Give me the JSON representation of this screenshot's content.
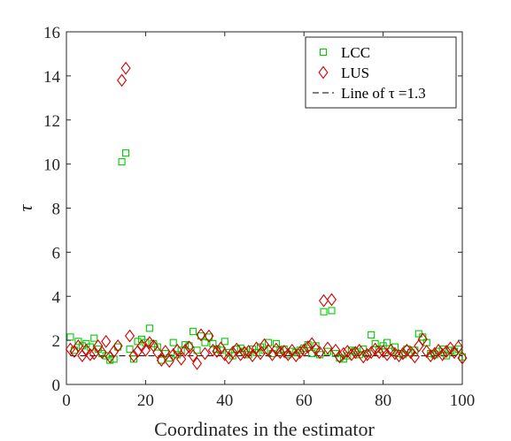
{
  "chart_data": {
    "type": "scatter",
    "title": "",
    "xlabel": "Coordinates in the estimator",
    "ylabel": "τ",
    "xlim": [
      0,
      100
    ],
    "ylim": [
      0,
      16
    ],
    "xticks": [
      0,
      20,
      40,
      60,
      80,
      100
    ],
    "yticks": [
      0,
      2,
      4,
      6,
      8,
      10,
      12,
      14,
      16
    ],
    "grid": false,
    "legend_position": "top-right",
    "series": [
      {
        "name": "LCC",
        "marker": "square",
        "color": "#00cc00",
        "x": [
          1,
          2,
          3,
          4,
          5,
          6,
          7,
          8,
          9,
          10,
          11,
          12,
          13,
          14,
          15,
          16,
          17,
          18,
          19,
          20,
          21,
          22,
          23,
          24,
          25,
          26,
          27,
          28,
          29,
          30,
          31,
          32,
          33,
          34,
          35,
          36,
          37,
          38,
          39,
          40,
          41,
          42,
          43,
          44,
          45,
          46,
          47,
          48,
          49,
          50,
          51,
          52,
          53,
          54,
          55,
          56,
          57,
          58,
          59,
          60,
          61,
          62,
          63,
          64,
          65,
          66,
          67,
          68,
          69,
          70,
          71,
          72,
          73,
          74,
          75,
          76,
          77,
          78,
          79,
          80,
          81,
          82,
          83,
          84,
          85,
          86,
          87,
          88,
          89,
          90,
          91,
          92,
          93,
          94,
          95,
          96,
          97,
          98,
          99,
          100
        ],
        "values": [
          2.15,
          1.55,
          1.95,
          1.75,
          1.85,
          1.7,
          2.1,
          1.6,
          1.4,
          1.3,
          1.1,
          1.15,
          1.7,
          10.1,
          10.5,
          1.6,
          1.15,
          1.95,
          2.05,
          1.9,
          2.55,
          1.85,
          1.7,
          1.1,
          1.4,
          1.2,
          1.9,
          1.35,
          1.55,
          1.8,
          1.75,
          2.4,
          1.55,
          2.2,
          1.9,
          2.15,
          1.85,
          1.6,
          1.55,
          1.95,
          1.45,
          1.3,
          1.6,
          1.65,
          1.5,
          1.35,
          1.6,
          1.45,
          1.7,
          1.55,
          1.9,
          1.4,
          1.85,
          1.55,
          1.6,
          1.35,
          1.5,
          1.45,
          1.55,
          1.65,
          1.8,
          1.4,
          1.75,
          1.35,
          3.3,
          1.5,
          3.35,
          1.4,
          1.2,
          1.15,
          1.3,
          1.55,
          1.5,
          1.35,
          1.6,
          1.4,
          2.25,
          1.85,
          1.6,
          1.75,
          1.9,
          1.5,
          1.7,
          1.4,
          1.35,
          1.6,
          1.45,
          1.55,
          2.3,
          2.15,
          1.9,
          1.4,
          1.35,
          1.5,
          1.6,
          1.3,
          1.55,
          1.5,
          1.6,
          1.25
        ]
      },
      {
        "name": "LUS",
        "marker": "diamond",
        "color": "#d40000",
        "x": [
          1,
          2,
          3,
          4,
          5,
          6,
          7,
          8,
          9,
          10,
          11,
          12,
          13,
          14,
          15,
          16,
          17,
          18,
          19,
          20,
          21,
          22,
          23,
          24,
          25,
          26,
          27,
          28,
          29,
          30,
          31,
          32,
          33,
          34,
          35,
          36,
          37,
          38,
          39,
          40,
          41,
          42,
          43,
          44,
          45,
          46,
          47,
          48,
          49,
          50,
          51,
          52,
          53,
          54,
          55,
          56,
          57,
          58,
          59,
          60,
          61,
          62,
          63,
          64,
          65,
          66,
          67,
          68,
          69,
          70,
          71,
          72,
          73,
          74,
          75,
          76,
          77,
          78,
          79,
          80,
          81,
          82,
          83,
          84,
          85,
          86,
          87,
          88,
          89,
          90,
          91,
          92,
          93,
          94,
          95,
          96,
          97,
          98,
          99,
          100
        ],
        "values": [
          1.6,
          1.5,
          1.75,
          1.3,
          1.55,
          1.35,
          1.4,
          1.75,
          1.45,
          1.95,
          1.25,
          1.5,
          1.75,
          13.8,
          14.35,
          2.2,
          1.3,
          1.5,
          1.75,
          1.55,
          1.9,
          1.75,
          1.45,
          1.1,
          1.5,
          1.05,
          1.35,
          1.55,
          1.15,
          1.55,
          1.7,
          1.3,
          0.95,
          2.25,
          1.4,
          2.2,
          1.55,
          1.5,
          1.65,
          1.35,
          1.2,
          1.45,
          1.6,
          1.35,
          1.45,
          1.5,
          1.3,
          1.65,
          1.4,
          1.8,
          1.55,
          1.35,
          1.6,
          1.45,
          1.5,
          1.35,
          1.55,
          1.3,
          1.45,
          1.55,
          1.7,
          1.85,
          1.6,
          1.45,
          3.8,
          1.65,
          3.85,
          1.55,
          1.25,
          1.4,
          1.5,
          1.35,
          1.45,
          1.55,
          1.25,
          1.35,
          1.45,
          1.6,
          1.45,
          1.5,
          1.35,
          1.55,
          1.4,
          1.3,
          1.4,
          1.55,
          1.45,
          1.25,
          1.75,
          2.05,
          1.5,
          1.3,
          1.4,
          1.55,
          1.35,
          1.5,
          1.65,
          1.45,
          1.7,
          1.2
        ]
      },
      {
        "name": "Line of τ =1.3",
        "type": "line",
        "dash": "dashed",
        "color": "#000000",
        "x": [
          1,
          100
        ],
        "values": [
          1.3,
          1.3
        ]
      }
    ]
  }
}
